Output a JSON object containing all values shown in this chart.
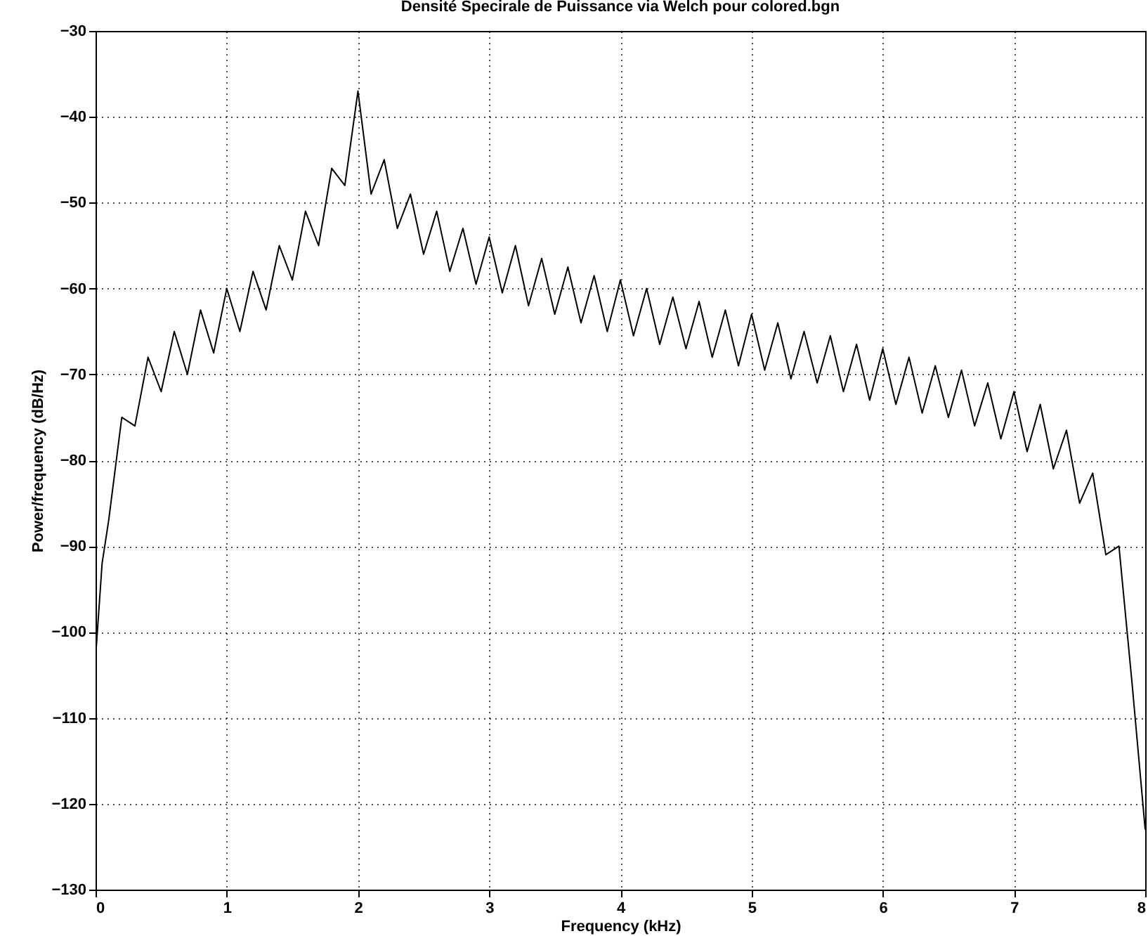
{
  "chart_data": {
    "type": "line",
    "title": "Densité Specirale de Puissance via Welch pour colored.bgn",
    "xlabel": "Frequency (kHz)",
    "ylabel": "Power/frequency (dB/Hz)",
    "x": [
      0,
      0.05,
      0.1,
      0.2,
      0.3,
      0.4,
      0.5,
      0.6,
      0.7,
      0.8,
      0.9,
      1.0,
      1.1,
      1.2,
      1.3,
      1.4,
      1.5,
      1.6,
      1.7,
      1.8,
      1.9,
      2.0,
      2.1,
      2.2,
      2.3,
      2.4,
      2.5,
      2.6,
      2.7,
      2.8,
      2.9,
      3.0,
      3.1,
      3.2,
      3.3,
      3.4,
      3.5,
      3.6,
      3.7,
      3.8,
      3.9,
      4.0,
      4.1,
      4.2,
      4.3,
      4.4,
      4.5,
      4.6,
      4.7,
      4.8,
      4.9,
      5.0,
      5.1,
      5.2,
      5.3,
      5.4,
      5.5,
      5.6,
      5.7,
      5.8,
      5.9,
      6.0,
      6.1,
      6.2,
      6.3,
      6.4,
      6.5,
      6.6,
      6.7,
      6.8,
      6.9,
      7.0,
      7.1,
      7.2,
      7.3,
      7.4,
      7.5,
      7.6,
      7.7,
      7.8,
      7.9,
      8.0
    ],
    "series": [
      {
        "color": "#000000",
        "values": [
          -103,
          -92,
          -87,
          -75,
          -76,
          -68,
          -72,
          -65,
          -70,
          -62.5,
          -67.5,
          -60,
          -65,
          -58,
          -62.5,
          -55,
          -59,
          -51,
          -55,
          -46,
          -48,
          -37,
          -49,
          -45,
          -53,
          -49,
          -56,
          -51,
          -58,
          -53,
          -59.5,
          -54,
          -60.5,
          -55,
          -62,
          -56.5,
          -63,
          -57.5,
          -64,
          -58.5,
          -65,
          -59,
          -65.5,
          -60,
          -66.5,
          -61,
          -67,
          -61.5,
          -68,
          -62.5,
          -69,
          -63,
          -69.5,
          -64,
          -70.5,
          -65,
          -71,
          -65.5,
          -72,
          -66.5,
          -73,
          -67,
          -73.5,
          -68,
          -74.5,
          -69,
          -75,
          -69.5,
          -76,
          -71,
          -77.5,
          -72,
          -79,
          -73.5,
          -81,
          -76.5,
          -85,
          -81.5,
          -91,
          -90,
          -106,
          -123
        ]
      }
    ],
    "xlim": [
      0,
      8
    ],
    "xticks": [
      0,
      1,
      2,
      3,
      4,
      5,
      6,
      7,
      8
    ],
    "ylim": [
      -130,
      -30
    ],
    "yticks": [
      -130,
      -120,
      -110,
      -100,
      -90,
      -80,
      -70,
      -60,
      -50,
      -40,
      -30
    ],
    "grid": true,
    "marker": "none",
    "line_style": "solid"
  }
}
